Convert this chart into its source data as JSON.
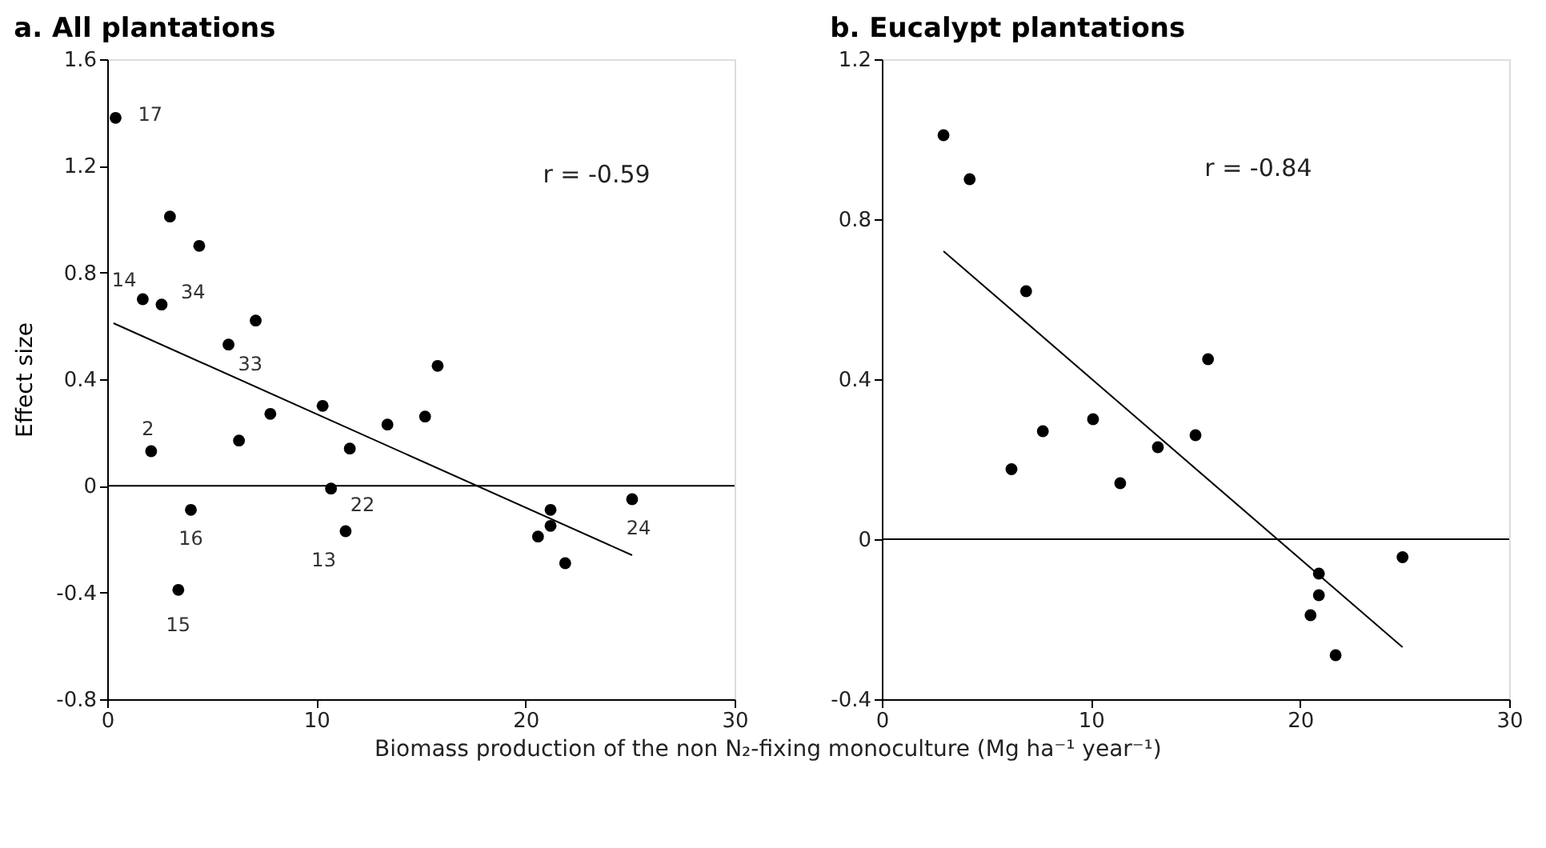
{
  "chart_data": [
    {
      "type": "scatter",
      "title": "a. All plantations",
      "xlabel": "Biomass production of the non N₂-fixing monoculture (Mg ha⁻¹ year⁻¹)",
      "ylabel": "Effect size",
      "xlim": [
        0,
        30
      ],
      "xticks": [
        0,
        10,
        20,
        30
      ],
      "ylim": [
        -0.8,
        1.6
      ],
      "yticks": [
        -0.8,
        -0.4,
        0,
        0.4,
        0.8,
        1.2,
        1.6
      ],
      "grid": false,
      "marker": "circle",
      "series": [
        {
          "color": "#000000",
          "x": [
            0.4,
            3.0,
            4.4,
            1.7,
            2.6,
            7.1,
            5.8,
            15.8,
            10.3,
            7.8,
            15.2,
            13.4,
            6.3,
            11.6,
            2.1,
            10.7,
            4.0,
            25.1,
            21.2,
            21.2,
            20.6,
            21.9,
            11.4,
            3.4
          ],
          "values": [
            1.38,
            1.01,
            0.9,
            0.7,
            0.68,
            0.62,
            0.53,
            0.45,
            0.3,
            0.27,
            0.26,
            0.23,
            0.17,
            0.14,
            0.13,
            -0.01,
            -0.09,
            -0.05,
            -0.09,
            -0.15,
            -0.19,
            -0.29,
            -0.17,
            -0.39
          ]
        },
        {
          "type": "line",
          "marker": "none",
          "color": "#000000",
          "x": [
            0.3,
            25.1
          ],
          "values": [
            0.61,
            -0.26
          ]
        }
      ],
      "ref_lines": [
        {
          "axis": "y",
          "value": 0,
          "label": null,
          "color": "#000000"
        }
      ],
      "annotations": [
        "r = -0.59",
        {
          "text": "17",
          "x": 0.4,
          "y": 1.38
        },
        {
          "text": "14",
          "x": 1.7,
          "y": 0.7
        },
        {
          "text": "34",
          "x": 2.6,
          "y": 0.68
        },
        {
          "text": "33",
          "x": 5.8,
          "y": 0.53
        },
        {
          "text": "2",
          "x": 2.1,
          "y": 0.13
        },
        {
          "text": "22",
          "x": 10.7,
          "y": -0.01
        },
        {
          "text": "16",
          "x": 4.0,
          "y": -0.09
        },
        {
          "text": "13",
          "x": 11.4,
          "y": -0.17
        },
        {
          "text": "15",
          "x": 3.4,
          "y": -0.39
        },
        {
          "text": "24",
          "x": 25.1,
          "y": -0.05
        }
      ]
    },
    {
      "type": "scatter",
      "title": "b. Eucalypt plantations",
      "xlim": [
        0,
        30
      ],
      "xticks": [
        0,
        10,
        20,
        30
      ],
      "ylim": [
        -0.4,
        1.2
      ],
      "yticks": [
        -0.4,
        0,
        0.4,
        0.8,
        1.2
      ],
      "grid": false,
      "marker": "circle",
      "series": [
        {
          "color": "#000000",
          "x": [
            2.95,
            4.2,
            6.9,
            15.6,
            10.1,
            7.7,
            15.0,
            13.2,
            6.2,
            11.4,
            24.9,
            20.9,
            20.9,
            20.5,
            21.7
          ],
          "values": [
            1.01,
            0.9,
            0.62,
            0.45,
            0.3,
            0.27,
            0.26,
            0.23,
            0.175,
            0.14,
            -0.045,
            -0.086,
            -0.14,
            -0.19,
            -0.29
          ]
        },
        {
          "type": "line",
          "marker": "none",
          "color": "#000000",
          "x": [
            2.95,
            24.9
          ],
          "values": [
            0.72,
            -0.27
          ]
        }
      ],
      "ref_lines": [
        {
          "axis": "y",
          "value": 0,
          "label": null,
          "color": "#000000"
        }
      ],
      "annotations": [
        "r = -0.84"
      ]
    }
  ]
}
